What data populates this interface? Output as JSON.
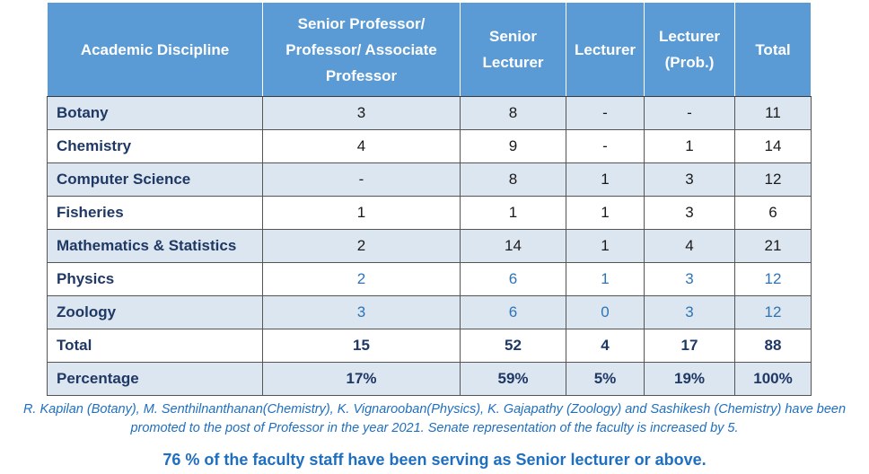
{
  "table": {
    "header": [
      "Academic Discipline",
      "Senior Professor/ Professor/ Associate Professor",
      "Senior Lecturer",
      "Lecturer",
      "Lecturer (Prob.)",
      "Total"
    ],
    "rows": [
      [
        "Botany",
        "3",
        "8",
        "-",
        "-",
        "11"
      ],
      [
        "Chemistry",
        "4",
        "9",
        "-",
        "1",
        "14"
      ],
      [
        "Computer Science",
        "-",
        "8",
        "1",
        "3",
        "12"
      ],
      [
        "Fisheries",
        "1",
        "1",
        "1",
        "3",
        "6"
      ],
      [
        "Mathematics & Statistics",
        "2",
        "14",
        "1",
        "4",
        "21"
      ],
      [
        "Physics",
        "2",
        "6",
        "1",
        "3",
        "12"
      ],
      [
        "Zoology",
        "3",
        "6",
        "0",
        "3",
        "12"
      ],
      [
        "Total",
        "15",
        "52",
        "4",
        "17",
        "88"
      ],
      [
        "Percentage",
        "17%",
        "59%",
        "5%",
        "19%",
        "100%"
      ]
    ]
  },
  "note": "R. Kapilan (Botany), M. Senthilnanthanan(Chemistry), K. Vignarooban(Physics), K. Gajapathy (Zoology) and Sashikesh (Chemistry) have been promoted to the post of Professor in the year 2021. Senate representation of the faculty is increased by 5.",
  "summary": "76 % of the faculty staff have been serving as Senior lecturer or above."
}
